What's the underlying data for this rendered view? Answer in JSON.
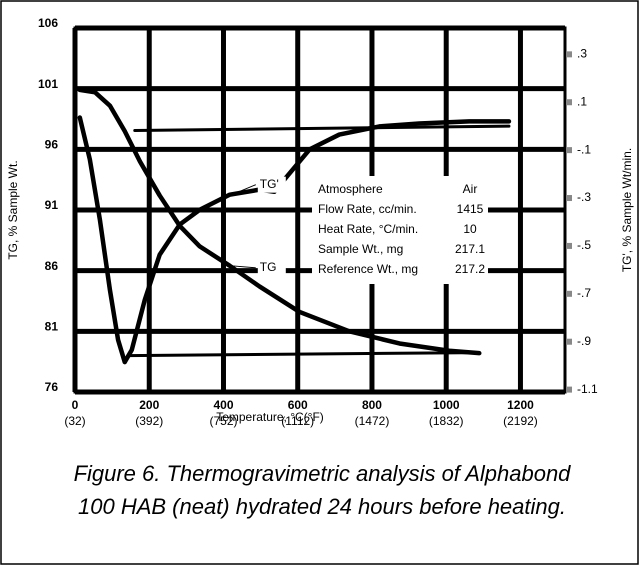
{
  "chart_data": {
    "type": "line",
    "xlabel": "Temperature, °C(°F)",
    "ylabel": "TG, % Sample  Wt.",
    "y2label": "TG', % Sample  Wt/min.",
    "xlim": [
      0,
      1320
    ],
    "xticks": [
      0,
      200,
      400,
      600,
      800,
      1000,
      1200
    ],
    "xtick_sublabels": [
      "(32)",
      "(392)",
      "(752)",
      "(1112)",
      "(1472)",
      "(1832)",
      "(2192)"
    ],
    "ylim": [
      76,
      106
    ],
    "yticks": [
      76,
      81,
      86,
      91,
      96,
      101,
      106
    ],
    "y2lim": [
      -1.11,
      0.41
    ],
    "y2ticks": [
      {
        "value": 0.3,
        "label": ".3"
      },
      {
        "value": 0.1,
        "label": ".1"
      },
      {
        "value": -0.1,
        "label": "-.1"
      },
      {
        "value": -0.3,
        "label": "-.3"
      },
      {
        "value": -0.5,
        "label": "-.5"
      },
      {
        "value": -0.7,
        "label": "-.7"
      },
      {
        "value": -0.9,
        "label": "-.9"
      },
      {
        "value": -1.1,
        "label": "-1.1"
      }
    ],
    "grid": true,
    "color": "#000000",
    "series": [
      {
        "name": "TG",
        "x": [
          13,
          54,
          94,
          134,
          175,
          228,
          282,
          336,
          417,
          497,
          605,
          739,
          874,
          1008,
          1089
        ],
        "values": [
          100.9,
          100.7,
          99.6,
          97.5,
          95.0,
          92.2,
          89.7,
          88.0,
          86.4,
          84.7,
          82.6,
          81.0,
          80.0,
          79.4,
          79.2
        ]
      },
      {
        "name": "TG'",
        "axis": "y2",
        "x": [
          13,
          40,
          67,
          94,
          116,
          134,
          153,
          188,
          228,
          282,
          336,
          417,
          497,
          537,
          564,
          632,
          712,
          820,
          927,
          1062,
          1169
        ],
        "values": [
          0.036,
          -0.139,
          -0.39,
          -0.683,
          -0.892,
          -0.985,
          -0.934,
          -0.725,
          -0.537,
          -0.411,
          -0.349,
          -0.286,
          -0.265,
          -0.274,
          -0.223,
          -0.097,
          -0.035,
          -0.001,
          0.011,
          0.02,
          0.02
        ]
      },
      {
        "axis": "y2",
        "x": [
          161,
          1169
        ],
        "values": [
          -0.018,
          0.0
        ]
      },
      {
        "x": [
          142,
          1089
        ],
        "values": [
          79.0,
          79.25
        ]
      }
    ],
    "info_table": [
      [
        "Atmosphere",
        "Air"
      ],
      [
        "Flow Rate, cc/min.",
        1415
      ],
      [
        "Heat Rate, °C/min.",
        10
      ],
      [
        "Sample Wt., mg",
        217.1
      ],
      [
        "Reference Wt., mg",
        217.2
      ]
    ],
    "caption": [
      "Figure 6. Thermogravimetric analysis of Alphabond",
      "100 HAB (neat) hydrated 24 hours before heating."
    ]
  }
}
